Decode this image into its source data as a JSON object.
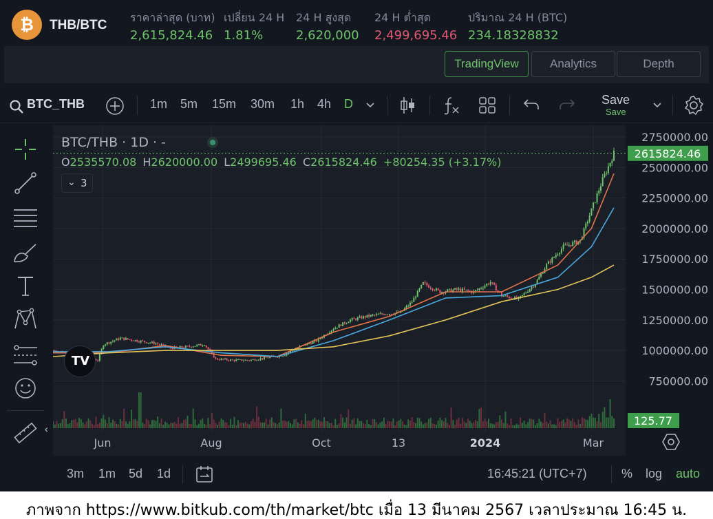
{
  "ticker": {
    "coin_icon": "bitcoin-icon",
    "pair": "THB/BTC",
    "stats": [
      {
        "label": "ราคาล่าสุด (บาท)",
        "value": "2,615,824.46",
        "tone": "up"
      },
      {
        "label": "เปลี่ยน 24 H",
        "value": "1.81%",
        "tone": "up"
      },
      {
        "label": "24 H สูงสุด",
        "value": "2,620,000",
        "tone": "up"
      },
      {
        "label": "24 H ต่ำสุด",
        "value": "2,499,695.46",
        "tone": "down"
      },
      {
        "label": "ปริมาณ 24 H (BTC)",
        "value": "234.18328832",
        "tone": "up"
      }
    ]
  },
  "tabs": [
    {
      "label": "TradingView",
      "active": true
    },
    {
      "label": "Analytics",
      "active": false
    },
    {
      "label": "Depth",
      "active": false
    }
  ],
  "toolbar": {
    "symbol": "BTC_THB",
    "intervals": [
      "1m",
      "5m",
      "15m",
      "30m",
      "1h",
      "4h",
      "D"
    ],
    "selected_interval": "D",
    "save_label": "Save",
    "save_sub": "Save"
  },
  "legend": {
    "title": "BTC/THB · 1D · -",
    "o_label": "O",
    "o_value": "2535570.08",
    "h_label": "H",
    "h_value": "2620000.00",
    "l_label": "L",
    "l_value": "2499695.46",
    "c_label": "C",
    "c_value": "2615824.46",
    "change": "+80254.35 (+3.17%)",
    "indicators_count": "3"
  },
  "colors": {
    "up": "#6fc36b",
    "down": "#e05a72",
    "bg": "#13171f",
    "ma_fast": "#e0734a",
    "ma_mid": "#4aa8e0",
    "ma_slow": "#e2c35a"
  },
  "chart_data": {
    "type": "candlestick",
    "title": "BTC/THB · 1D · -",
    "price_axis": [
      "2750000.00",
      "2500000.00",
      "2250000.00",
      "2000000.00",
      "1750000.00",
      "1500000.00",
      "1250000.00",
      "1000000.00",
      "750000.00"
    ],
    "price_ticks": [
      2750000,
      2500000,
      2250000,
      2000000,
      1750000,
      1500000,
      1250000,
      1000000,
      750000
    ],
    "time_axis": [
      {
        "label": "Jun",
        "bold": false
      },
      {
        "label": "Aug",
        "bold": false
      },
      {
        "label": "Oct",
        "bold": false
      },
      {
        "label": "13",
        "bold": false
      },
      {
        "label": "2024",
        "bold": true
      },
      {
        "label": "Mar",
        "bold": false
      }
    ],
    "last_price": "2615824.46",
    "last_price_value": 2615824.46,
    "last_volume": "125.77",
    "price_path": [
      [
        0,
        1000000
      ],
      [
        3,
        970000
      ],
      [
        6,
        940000
      ],
      [
        8,
        920000
      ],
      [
        9,
        1050000
      ],
      [
        12,
        1100000
      ],
      [
        15,
        1080000
      ],
      [
        18,
        1060000
      ],
      [
        21,
        1020000
      ],
      [
        24,
        1030000
      ],
      [
        27,
        1050000
      ],
      [
        29,
        930000
      ],
      [
        32,
        920000
      ],
      [
        35,
        920000
      ],
      [
        38,
        940000
      ],
      [
        41,
        960000
      ],
      [
        44,
        1030000
      ],
      [
        47,
        1080000
      ],
      [
        50,
        1180000
      ],
      [
        53,
        1250000
      ],
      [
        56,
        1280000
      ],
      [
        59,
        1300000
      ],
      [
        62,
        1310000
      ],
      [
        64,
        1400000
      ],
      [
        66,
        1550000
      ],
      [
        69,
        1480000
      ],
      [
        72,
        1500000
      ],
      [
        75,
        1480000
      ],
      [
        78,
        1560000
      ],
      [
        80,
        1450000
      ],
      [
        83,
        1420000
      ],
      [
        86,
        1550000
      ],
      [
        88,
        1700000
      ],
      [
        91,
        1850000
      ],
      [
        94,
        1900000
      ],
      [
        96,
        2150000
      ],
      [
        98,
        2400000
      ],
      [
        100,
        2615824
      ]
    ],
    "volume_scale": "relative",
    "moving_averages": [
      {
        "name": "fast",
        "points": [
          [
            0,
            980000
          ],
          [
            10,
            980000
          ],
          [
            20,
            1040000
          ],
          [
            30,
            960000
          ],
          [
            40,
            950000
          ],
          [
            50,
            1150000
          ],
          [
            60,
            1280000
          ],
          [
            70,
            1480000
          ],
          [
            80,
            1480000
          ],
          [
            90,
            1700000
          ],
          [
            96,
            2000000
          ],
          [
            100,
            2450000
          ]
        ]
      },
      {
        "name": "mid",
        "points": [
          [
            0,
            990000
          ],
          [
            10,
            990000
          ],
          [
            20,
            1030000
          ],
          [
            30,
            980000
          ],
          [
            40,
            950000
          ],
          [
            50,
            1080000
          ],
          [
            60,
            1250000
          ],
          [
            70,
            1430000
          ],
          [
            80,
            1450000
          ],
          [
            90,
            1600000
          ],
          [
            96,
            1850000
          ],
          [
            100,
            2170000
          ]
        ]
      },
      {
        "name": "slow",
        "points": [
          [
            0,
            950000
          ],
          [
            10,
            980000
          ],
          [
            20,
            1000000
          ],
          [
            30,
            1000000
          ],
          [
            40,
            1000000
          ],
          [
            50,
            1030000
          ],
          [
            60,
            1120000
          ],
          [
            70,
            1250000
          ],
          [
            80,
            1400000
          ],
          [
            90,
            1500000
          ],
          [
            96,
            1600000
          ],
          [
            100,
            1700000
          ]
        ]
      }
    ]
  },
  "bottombar": {
    "ranges": [
      "3m",
      "1m",
      "5d",
      "1d"
    ],
    "time": "16:45:21 (UTC+7)",
    "percent": "%",
    "log": "log",
    "auto": "auto"
  },
  "caption": "ภาพจาก https://www.bitkub.com/th/market/btc เมื่อ 13 มีนาคม 2567 เวลาประมาณ 16:45 น."
}
